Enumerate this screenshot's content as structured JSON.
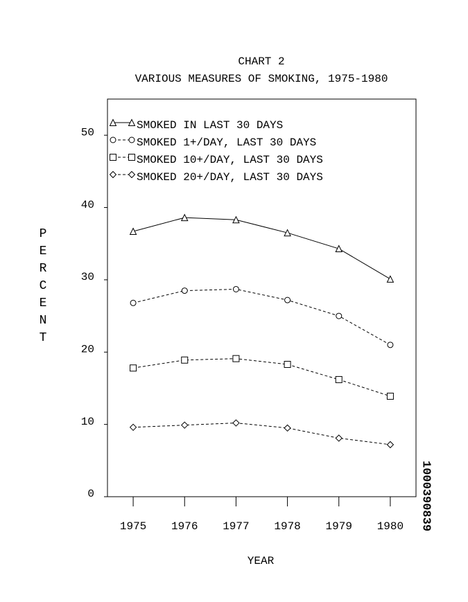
{
  "chart_data": {
    "type": "line",
    "title": "CHART 2",
    "subtitle": "VARIOUS MEASURES OF SMOKING, 1975-1980",
    "x_label": "YEAR",
    "y_label": "PERCENT",
    "annotation": "1000390839",
    "x": [
      1975,
      1976,
      1977,
      1978,
      1979,
      1980
    ],
    "xlim": [
      1974.5,
      1980.5
    ],
    "xticks": [
      1975,
      1976,
      1977,
      1978,
      1979,
      1980
    ],
    "ylim": [
      0,
      55
    ],
    "yticks": [
      0,
      10,
      20,
      30,
      40,
      50
    ],
    "grid": false,
    "legend": "upper left",
    "series": [
      {
        "name": "SMOKED IN LAST 30 DAYS",
        "color": "#000000",
        "marker": "triangle",
        "dash": "solid",
        "values": [
          36.7,
          38.6,
          38.3,
          36.5,
          34.3,
          30.1
        ]
      },
      {
        "name": "SMOKED 1+/DAY, LAST 30 DAYS",
        "color": "#000000",
        "marker": "circle",
        "dash": "dashed",
        "values": [
          26.8,
          28.5,
          28.7,
          27.2,
          25.0,
          21.0
        ]
      },
      {
        "name": "SMOKED 10+/DAY, LAST 30 DAYS",
        "color": "#000000",
        "marker": "square",
        "dash": "dashed",
        "values": [
          17.8,
          18.9,
          19.1,
          18.3,
          16.2,
          13.9
        ]
      },
      {
        "name": "SMOKED 20+/DAY, LAST 30 DAYS",
        "color": "#000000",
        "marker": "diamond",
        "dash": "dashed",
        "values": [
          9.6,
          9.9,
          10.2,
          9.5,
          8.1,
          7.2
        ]
      }
    ]
  }
}
